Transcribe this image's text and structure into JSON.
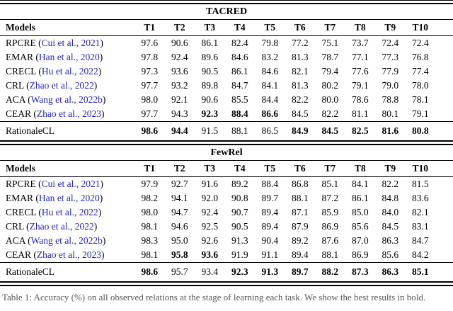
{
  "colors": {
    "citation_blue": "#2323bb",
    "rule_black": "#000000"
  },
  "caption": {
    "text": "Table 1: Accuracy (%) on all observed relations at the stage of learning each task. We show the best results in bold."
  },
  "tables": [
    {
      "title": "TACRED",
      "columns": [
        "Models",
        "T1",
        "T2",
        "T3",
        "T4",
        "T5",
        "T6",
        "T7",
        "T8",
        "T9",
        "T10"
      ],
      "rows": [
        {
          "model": "RPCRE",
          "citation": "Cui et al., 2021",
          "values": [
            "97.6",
            "90.6",
            "86.1",
            "82.4",
            "79.8",
            "77.2",
            "75.1",
            "73.7",
            "72.4",
            "72.4"
          ],
          "bold": []
        },
        {
          "model": "EMAR",
          "citation": "Han et al., 2020",
          "values": [
            "97.8",
            "92.4",
            "89.6",
            "84.6",
            "83.2",
            "81.3",
            "78.7",
            "77.1",
            "77.3",
            "76.8"
          ],
          "bold": []
        },
        {
          "model": "CRECL",
          "citation": "Hu et al., 2022",
          "values": [
            "97.3",
            "93.6",
            "90.5",
            "86.1",
            "84.6",
            "82.1",
            "79.4",
            "77.6",
            "77.9",
            "77.4"
          ],
          "bold": []
        },
        {
          "model": "CRL",
          "citation": "Zhao et al., 2022",
          "values": [
            "97.7",
            "93.2",
            "89.8",
            "84.7",
            "84.1",
            "81.3",
            "80.2",
            "79.1",
            "79.0",
            "78.0"
          ],
          "bold": []
        },
        {
          "model": "ACA",
          "citation": "Wang et al., 2022b",
          "values": [
            "98.0",
            "92.1",
            "90.6",
            "85.5",
            "84.4",
            "82.2",
            "80.0",
            "78.6",
            "78.8",
            "78.1"
          ],
          "bold": []
        },
        {
          "model": "CEAR",
          "citation": "Zhao et al., 2023",
          "values": [
            "97.7",
            "94.3",
            "92.3",
            "88.4",
            "86.6",
            "84.5",
            "82.2",
            "81.1",
            "80.1",
            "79.1"
          ],
          "bold": [
            2,
            3,
            4
          ]
        }
      ],
      "highlight_row": {
        "model": "RationaleCL",
        "citation": null,
        "values": [
          "98.6",
          "94.4",
          "91.5",
          "88.1",
          "86.5",
          "84.9",
          "84.5",
          "82.5",
          "81.6",
          "80.8"
        ],
        "bold": [
          0,
          1,
          5,
          6,
          7,
          8,
          9
        ]
      }
    },
    {
      "title": "FewRel",
      "columns": [
        "Models",
        "T1",
        "T2",
        "T3",
        "T4",
        "T5",
        "T6",
        "T7",
        "T8",
        "T9",
        "T10"
      ],
      "rows": [
        {
          "model": "RPCRE",
          "citation": "Cui et al., 2021",
          "values": [
            "97.9",
            "92.7",
            "91.6",
            "89.2",
            "88.4",
            "86.8",
            "85.1",
            "84.1",
            "82.2",
            "81.5"
          ],
          "bold": []
        },
        {
          "model": "EMAR",
          "citation": "Han et al., 2020",
          "values": [
            "98.2",
            "94.1",
            "92.0",
            "90.8",
            "89.7",
            "88.1",
            "87.2",
            "86.1",
            "84.8",
            "83.6"
          ],
          "bold": []
        },
        {
          "model": "CRECL",
          "citation": "Hu et al., 2022",
          "values": [
            "98.0",
            "94.7",
            "92.4",
            "90.7",
            "89.4",
            "87.1",
            "85.9",
            "85.0",
            "84.0",
            "82.1"
          ],
          "bold": []
        },
        {
          "model": "CRL",
          "citation": "Zhao et al., 2022",
          "values": [
            "98.1",
            "94.6",
            "92.5",
            "90.5",
            "89.4",
            "87.9",
            "86.9",
            "85.6",
            "84.5",
            "83.1"
          ],
          "bold": []
        },
        {
          "model": "ACA",
          "citation": "Wang et al., 2022b",
          "values": [
            "98.3",
            "95.0",
            "92.6",
            "91.3",
            "90.4",
            "89.2",
            "87.6",
            "87.0",
            "86.3",
            "84.7"
          ],
          "bold": []
        },
        {
          "model": "CEAR",
          "citation": "Zhao et al., 2023",
          "values": [
            "98.1",
            "95.8",
            "93.6",
            "91.9",
            "91.1",
            "89.4",
            "88.1",
            "86.9",
            "85.6",
            "84.2"
          ],
          "bold": [
            1,
            2
          ]
        }
      ],
      "highlight_row": {
        "model": "RationaleCL",
        "citation": null,
        "values": [
          "98.6",
          "95.7",
          "93.4",
          "92.3",
          "91.3",
          "89.7",
          "88.2",
          "87.3",
          "86.3",
          "85.1"
        ],
        "bold": [
          0,
          3,
          4,
          5,
          6,
          7,
          8,
          9
        ]
      }
    }
  ]
}
